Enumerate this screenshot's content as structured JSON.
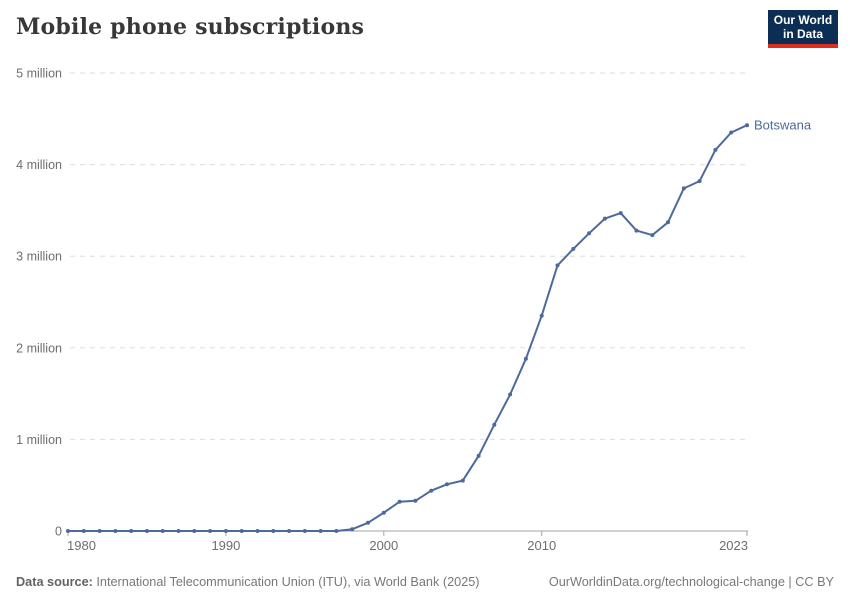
{
  "header": {
    "title": "Mobile phone subscriptions"
  },
  "logo": {
    "line1": "Our World",
    "line2": "in Data",
    "bg_color": "#0d2e54",
    "accent_color": "#dc2f1f"
  },
  "footer": {
    "source_label": "Data source:",
    "source_text": " International Telecommunication Union (ITU), via World Bank (2025)",
    "link_text": "OurWorldinData.org/technological-change | CC BY"
  },
  "chart_data": {
    "type": "line",
    "title": "Mobile phone subscriptions",
    "xlabel": "",
    "ylabel": "",
    "grid": true,
    "xlim": [
      1980,
      2023
    ],
    "ylim": [
      0,
      5000000
    ],
    "x": [
      1980,
      1981,
      1982,
      1983,
      1984,
      1985,
      1986,
      1987,
      1988,
      1989,
      1990,
      1991,
      1992,
      1993,
      1994,
      1995,
      1996,
      1997,
      1998,
      1999,
      2000,
      2001,
      2002,
      2003,
      2004,
      2005,
      2006,
      2007,
      2008,
      2009,
      2010,
      2011,
      2012,
      2013,
      2014,
      2015,
      2016,
      2017,
      2018,
      2019,
      2020,
      2021,
      2022,
      2023
    ],
    "series": [
      {
        "name": "Botswana",
        "color": "#4C6A9C",
        "values": [
          0,
          0,
          0,
          0,
          0,
          0,
          0,
          0,
          0,
          0,
          0,
          0,
          0,
          0,
          0,
          0,
          0,
          0,
          20000,
          90000,
          200000,
          320000,
          330000,
          440000,
          510000,
          550000,
          820000,
          1160000,
          1490000,
          1880000,
          2350000,
          2900000,
          3080000,
          3250000,
          3410000,
          3470000,
          3280000,
          3230000,
          3370000,
          3740000,
          3820000,
          4160000,
          4350000,
          4430000
        ]
      }
    ],
    "yticks": [
      {
        "value": 0,
        "label": "0"
      },
      {
        "value": 1000000,
        "label": "1 million"
      },
      {
        "value": 2000000,
        "label": "2 million"
      },
      {
        "value": 3000000,
        "label": "3 million"
      },
      {
        "value": 4000000,
        "label": "4 million"
      },
      {
        "value": 5000000,
        "label": "5 million"
      }
    ],
    "xticks": [
      1980,
      1990,
      2000,
      2010,
      2023
    ],
    "legend_position": "end-of-line-label",
    "axis_color": "#a3a3a3",
    "grid_color": "#dedede",
    "tick_label_color": "#6e6e6e"
  }
}
